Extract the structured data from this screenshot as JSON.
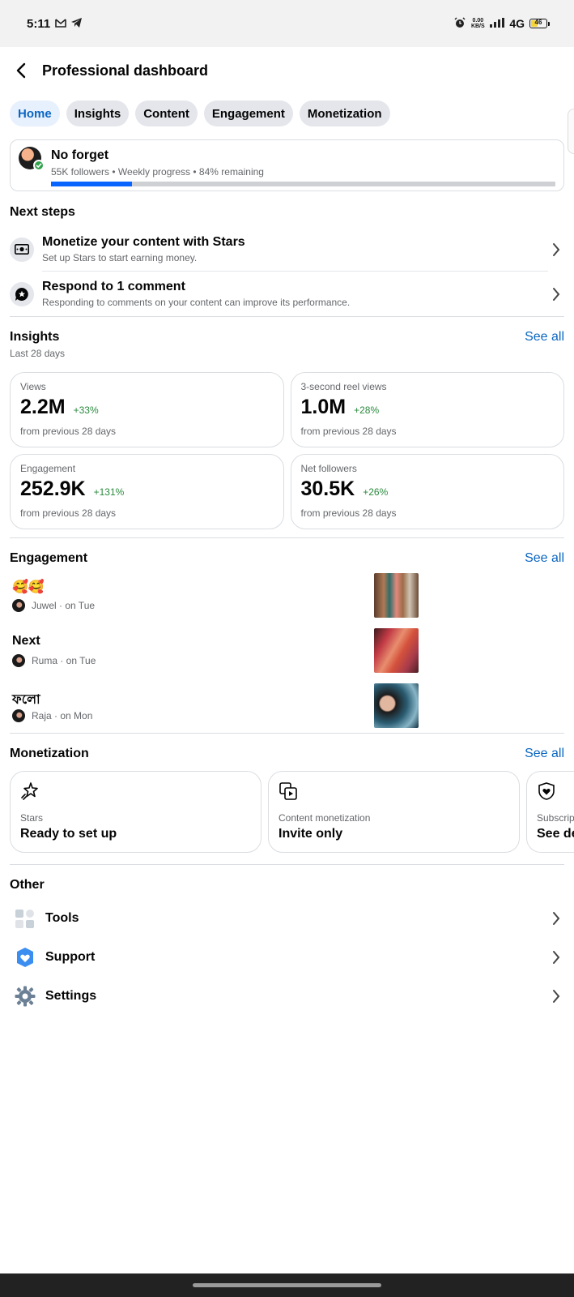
{
  "status_bar": {
    "time": "5:11",
    "network_speed": "0.00 KB/S",
    "network_type": "4G",
    "battery_level": "46"
  },
  "header": {
    "title": "Professional dashboard"
  },
  "tabs": [
    {
      "label": "Home",
      "active": true
    },
    {
      "label": "Insights",
      "active": false
    },
    {
      "label": "Content",
      "active": false
    },
    {
      "label": "Engagement",
      "active": false
    },
    {
      "label": "Monetization",
      "active": false
    }
  ],
  "profile": {
    "name": "No forget",
    "meta": "55K followers • Weekly progress • 84% remaining",
    "progress": 0.16
  },
  "next_steps": {
    "title": "Next steps",
    "items": [
      {
        "title": "Monetize your content with Stars",
        "subtitle": "Set up Stars to start earning money.",
        "icon": "money-icon"
      },
      {
        "title": "Respond to 1 comment",
        "subtitle": "Responding to comments on your content can improve its performance.",
        "icon": "comment-star-icon"
      }
    ]
  },
  "insights": {
    "title": "Insights",
    "see_all": "See all",
    "subtitle": "Last 28 days",
    "metrics": [
      {
        "label": "Views",
        "value": "2.2M",
        "change": "+33%",
        "foot": "from previous 28 days"
      },
      {
        "label": "3-second reel views",
        "value": "1.0M",
        "change": "+28%",
        "foot": "from previous 28 days"
      },
      {
        "label": "Engagement",
        "value": "252.9K",
        "change": "+131%",
        "foot": "from previous 28 days"
      },
      {
        "label": "Net followers",
        "value": "30.5K",
        "change": "+26%",
        "foot": "from previous 28 days"
      }
    ]
  },
  "engagement": {
    "title": "Engagement",
    "see_all": "See all",
    "items": [
      {
        "text": "🥰🥰",
        "meta": "Juwel · on Tue"
      },
      {
        "text": "Next",
        "meta": "Ruma · on Tue"
      },
      {
        "text": "ফলো",
        "meta": "Raja · on Mon"
      }
    ]
  },
  "monetization": {
    "title": "Monetization",
    "see_all": "See all",
    "cards": [
      {
        "label": "Stars",
        "value": "Ready to set up",
        "icon": "stars-icon"
      },
      {
        "label": "Content monetization",
        "value": "Invite only",
        "icon": "content-monetization-icon"
      },
      {
        "label": "Subscrip",
        "value": "See de",
        "icon": "subscription-heart-icon"
      }
    ]
  },
  "other": {
    "title": "Other",
    "items": [
      {
        "label": "Tools",
        "icon": "tools-icon"
      },
      {
        "label": "Support",
        "icon": "support-heart-icon"
      },
      {
        "label": "Settings",
        "icon": "gear-icon"
      }
    ]
  },
  "colors": {
    "accent": "#0a66c2",
    "progress": "#0866ff",
    "positive": "#2a8a3e"
  }
}
